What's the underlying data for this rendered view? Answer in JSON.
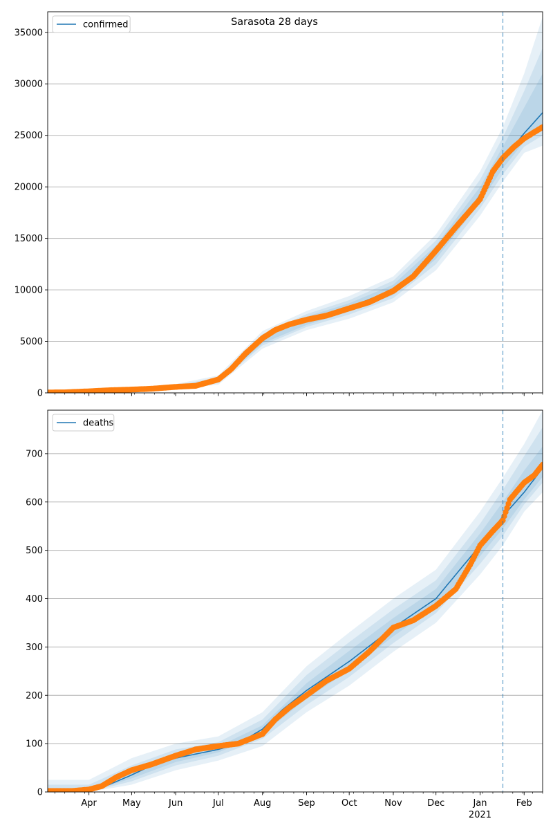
{
  "figure": {
    "title": "Sarasota 28 days"
  },
  "colors": {
    "model_line": "#1f77b4",
    "observed_points": "#ff7f0e",
    "band": "#1f77b4",
    "grid": "#b0b0b0",
    "forecast_divider": "#1f77b4"
  },
  "chart_data": [
    {
      "type": "line",
      "legend": {
        "entries": [
          "confirmed"
        ],
        "placement": "top-left"
      },
      "grid": {
        "y": true,
        "x": false
      },
      "xlim": [
        "2020-03-03",
        "2021-02-14"
      ],
      "ylim": [
        0,
        37000
      ],
      "yticks": [
        0,
        5000,
        10000,
        15000,
        20000,
        25000,
        30000,
        35000
      ],
      "forecast_start": "2021-01-17",
      "series": [
        {
          "name": "confirmed",
          "role": "model",
          "x": [
            "2020-03-03",
            "2020-04-01",
            "2020-05-01",
            "2020-06-01",
            "2020-06-15",
            "2020-07-01",
            "2020-07-15",
            "2020-08-01",
            "2020-08-15",
            "2020-09-01",
            "2020-10-01",
            "2020-11-01",
            "2020-11-15",
            "2020-12-01",
            "2020-12-15",
            "2021-01-01",
            "2021-01-17",
            "2021-02-01",
            "2021-02-14"
          ],
          "y": [
            30,
            80,
            250,
            560,
            650,
            1200,
            2800,
            5100,
            6350,
            7000,
            8300,
            10000,
            11500,
            13600,
            16000,
            19200,
            22600,
            25200,
            27200
          ]
        },
        {
          "role": "observed",
          "x": [
            "2020-03-03",
            "2020-03-15",
            "2020-04-01",
            "2020-04-15",
            "2020-05-01",
            "2020-05-15",
            "2020-06-01",
            "2020-06-15",
            "2020-07-01",
            "2020-07-10",
            "2020-07-20",
            "2020-08-01",
            "2020-08-10",
            "2020-08-20",
            "2020-09-01",
            "2020-09-15",
            "2020-10-01",
            "2020-10-15",
            "2020-11-01",
            "2020-11-15",
            "2020-12-01",
            "2020-12-15",
            "2021-01-01",
            "2021-01-10",
            "2021-01-17",
            "2021-01-25",
            "2021-02-01",
            "2021-02-08",
            "2021-02-14"
          ],
          "y": [
            40,
            50,
            150,
            250,
            320,
            400,
            580,
            680,
            1300,
            2300,
            3800,
            5300,
            6100,
            6650,
            7100,
            7500,
            8200,
            8800,
            9900,
            11300,
            13800,
            16100,
            18800,
            21500,
            22800,
            23900,
            24700,
            25300,
            25800
          ]
        }
      ],
      "bands": [
        {
          "x": [
            "2020-03-03",
            "2020-04-01",
            "2020-05-01",
            "2020-06-01",
            "2020-07-01",
            "2020-08-01",
            "2020-09-01",
            "2020-10-01",
            "2020-11-01",
            "2020-12-01",
            "2021-01-01",
            "2021-01-17",
            "2021-02-01",
            "2021-02-14"
          ],
          "lower": [
            0,
            0,
            100,
            350,
            800,
            4300,
            6100,
            7200,
            8800,
            11900,
            17200,
            20500,
            23300,
            24000
          ],
          "upper": [
            130,
            220,
            450,
            850,
            1700,
            6000,
            7950,
            9400,
            11300,
            15400,
            21500,
            25800,
            31000,
            36500
          ]
        },
        {
          "x": [
            "2020-03-03",
            "2020-04-01",
            "2020-05-01",
            "2020-06-01",
            "2020-07-01",
            "2020-08-01",
            "2020-09-01",
            "2020-10-01",
            "2020-11-01",
            "2020-12-01",
            "2021-01-01",
            "2021-01-17",
            "2021-02-01",
            "2021-02-14"
          ],
          "lower": [
            5,
            20,
            160,
            430,
            950,
            4600,
            6400,
            7600,
            9200,
            12500,
            17900,
            21200,
            23900,
            25000
          ],
          "upper": [
            90,
            170,
            380,
            740,
            1500,
            5700,
            7650,
            9000,
            10900,
            14800,
            20700,
            24800,
            29300,
            33500
          ]
        },
        {
          "x": [
            "2020-03-03",
            "2020-04-01",
            "2020-05-01",
            "2020-06-01",
            "2020-07-01",
            "2020-08-01",
            "2020-09-01",
            "2020-10-01",
            "2020-11-01",
            "2020-12-01",
            "2021-01-01",
            "2021-01-17",
            "2021-02-01",
            "2021-02-14"
          ],
          "lower": [
            10,
            45,
            200,
            480,
            1050,
            4800,
            6600,
            7900,
            9500,
            13000,
            18500,
            21800,
            24400,
            25900
          ],
          "upper": [
            60,
            130,
            320,
            660,
            1380,
            5450,
            7400,
            8700,
            10500,
            14300,
            20000,
            23900,
            27700,
            31000
          ]
        }
      ]
    },
    {
      "type": "line",
      "legend": {
        "entries": [
          "deaths"
        ],
        "placement": "top-left"
      },
      "grid": {
        "y": true,
        "x": false
      },
      "xlim": [
        "2020-03-03",
        "2021-02-14"
      ],
      "ylim": [
        0,
        790
      ],
      "yticks": [
        0,
        100,
        200,
        300,
        400,
        500,
        600,
        700
      ],
      "forecast_start": "2021-01-17",
      "x_major_labels": [
        {
          "date": "2020-04-01",
          "label": "Apr"
        },
        {
          "date": "2020-05-01",
          "label": "May"
        },
        {
          "date": "2020-06-01",
          "label": "Jun"
        },
        {
          "date": "2020-07-01",
          "label": "Jul"
        },
        {
          "date": "2020-08-01",
          "label": "Aug"
        },
        {
          "date": "2020-09-01",
          "label": "Sep"
        },
        {
          "date": "2020-10-01",
          "label": "Oct"
        },
        {
          "date": "2020-11-01",
          "label": "Nov"
        },
        {
          "date": "2020-12-01",
          "label": "Dec"
        },
        {
          "date": "2021-01-01",
          "label": "Jan",
          "sublabel": "2021"
        },
        {
          "date": "2021-02-01",
          "label": "Feb"
        }
      ],
      "series": [
        {
          "name": "deaths",
          "role": "model",
          "x": [
            "2020-03-03",
            "2020-04-01",
            "2020-04-15",
            "2020-05-01",
            "2020-05-15",
            "2020-06-01",
            "2020-07-01",
            "2020-07-15",
            "2020-08-01",
            "2020-08-15",
            "2020-09-01",
            "2020-10-01",
            "2020-11-01",
            "2020-12-01",
            "2020-12-15",
            "2021-01-01",
            "2021-01-17",
            "2021-02-01",
            "2021-02-14"
          ],
          "y": [
            0,
            2,
            15,
            35,
            55,
            70,
            88,
            100,
            130,
            170,
            210,
            270,
            340,
            400,
            450,
            510,
            570,
            620,
            670
          ]
        },
        {
          "role": "observed",
          "x": [
            "2020-03-03",
            "2020-03-20",
            "2020-04-01",
            "2020-04-10",
            "2020-04-20",
            "2020-05-01",
            "2020-05-15",
            "2020-06-01",
            "2020-06-15",
            "2020-07-01",
            "2020-07-15",
            "2020-08-01",
            "2020-08-10",
            "2020-08-20",
            "2020-09-01",
            "2020-09-15",
            "2020-10-01",
            "2020-10-15",
            "2020-11-01",
            "2020-11-15",
            "2020-12-01",
            "2020-12-15",
            "2020-12-25",
            "2021-01-01",
            "2021-01-10",
            "2021-01-17",
            "2021-01-22",
            "2021-02-01",
            "2021-02-08",
            "2021-02-14"
          ],
          "y": [
            2,
            2,
            5,
            12,
            30,
            45,
            57,
            75,
            88,
            95,
            100,
            120,
            150,
            175,
            200,
            230,
            255,
            290,
            340,
            355,
            385,
            420,
            470,
            510,
            540,
            562,
            605,
            640,
            655,
            677
          ]
        }
      ],
      "bands": [
        {
          "x": [
            "2020-03-03",
            "2020-04-01",
            "2020-05-01",
            "2020-06-01",
            "2020-07-01",
            "2020-08-01",
            "2020-09-01",
            "2020-10-01",
            "2020-11-01",
            "2020-12-01",
            "2021-01-01",
            "2021-01-17",
            "2021-02-01",
            "2021-02-14"
          ],
          "lower": [
            0,
            0,
            15,
            45,
            65,
            95,
            165,
            220,
            290,
            350,
            450,
            510,
            580,
            620
          ],
          "upper": [
            25,
            25,
            70,
            100,
            115,
            165,
            260,
            330,
            400,
            460,
            580,
            650,
            720,
            790
          ]
        },
        {
          "x": [
            "2020-03-03",
            "2020-04-01",
            "2020-05-01",
            "2020-06-01",
            "2020-07-01",
            "2020-08-01",
            "2020-09-01",
            "2020-10-01",
            "2020-11-01",
            "2020-12-01",
            "2021-01-01",
            "2021-01-17",
            "2021-02-01",
            "2021-02-14"
          ],
          "lower": [
            0,
            0,
            22,
            55,
            75,
            110,
            180,
            238,
            308,
            370,
            472,
            530,
            595,
            640
          ],
          "upper": [
            15,
            15,
            55,
            88,
            103,
            150,
            242,
            310,
            378,
            438,
            555,
            625,
            695,
            755
          ]
        },
        {
          "x": [
            "2020-03-03",
            "2020-04-01",
            "2020-05-01",
            "2020-06-01",
            "2020-07-01",
            "2020-08-01",
            "2020-09-01",
            "2020-10-01",
            "2020-11-01",
            "2020-12-01",
            "2021-01-01",
            "2021-01-17",
            "2021-02-01",
            "2021-02-14"
          ],
          "lower": [
            0,
            0,
            28,
            62,
            82,
            120,
            193,
            252,
            322,
            384,
            488,
            545,
            605,
            652
          ],
          "upper": [
            8,
            8,
            45,
            78,
            94,
            138,
            225,
            292,
            360,
            420,
            535,
            600,
            665,
            715
          ]
        }
      ]
    }
  ]
}
